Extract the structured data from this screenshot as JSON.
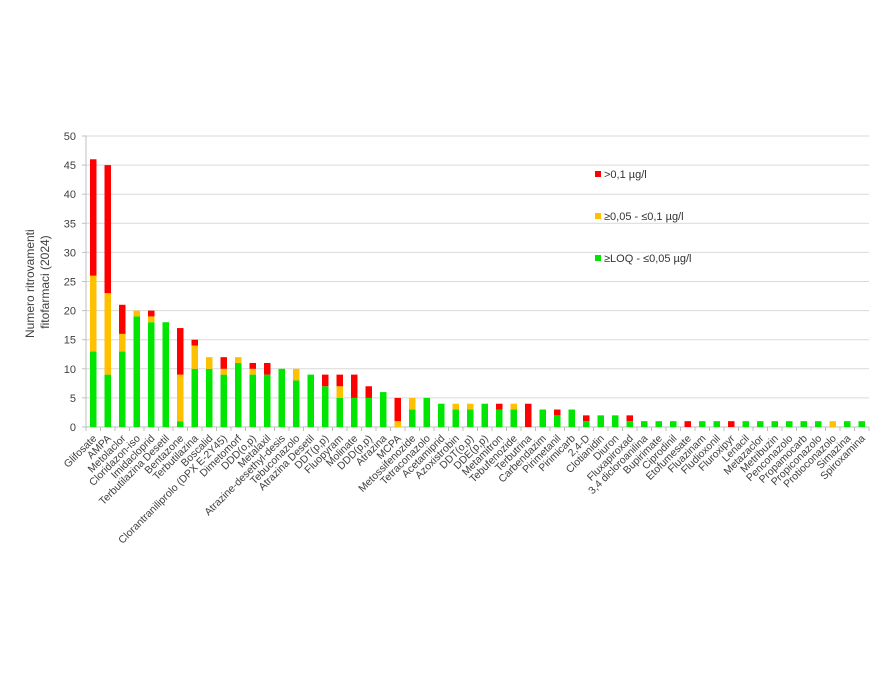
{
  "chart_data": {
    "type": "bar",
    "stacked": true,
    "title": "",
    "xlabel": "",
    "ylabel": "Numero ritrovamenti fitofarmaci (2024)",
    "ylabel_lines": [
      "Numero ritrovamenti",
      "fitofarmaci (2024)"
    ],
    "ylim": [
      0,
      50
    ],
    "yticks": [
      0,
      5,
      10,
      15,
      20,
      25,
      30,
      35,
      40,
      45,
      50
    ],
    "grid": true,
    "legend_position": "upper right (inside plot)",
    "categories": [
      "Glifosate",
      "AMPA",
      "Metolaclor",
      "Cloridazon-iso",
      "Imidacloprid",
      "Terbutilazina Desetil",
      "Bentazone",
      "Terbutilazina",
      "Boscalid",
      "Clorantraniliprolo (DPX E-2Y45)",
      "Dimetomorf",
      "DDD(o,p)",
      "Metalaxil",
      "Atrazine-desethyl-desis",
      "Tebuconazolo",
      "Atrazina Desetil",
      "DDT(p,p)",
      "Fluopyram",
      "Molinate",
      "DDD(p,p)",
      "Atrazina",
      "MCPA",
      "Metossifenozide",
      "Tetraconazolo",
      "Acetamiprid",
      "Azoxistrobin",
      "DDT(o,p)",
      "DDE(p,p)",
      "Metamitron",
      "Tebufenozide",
      "Terbutrina",
      "Carbendazim",
      "Pirimetanil",
      "Pirimicarb",
      "2,4-D",
      "Clotianidin",
      "Diuron",
      "Fluxapiroxad",
      "3,4 dicloroanilina",
      "Bupirimate",
      "Ciprodinil",
      "Etofumesate",
      "Fluazinam",
      "Fludioxonil",
      "Fluroxipyr",
      "Lenacil",
      "Metazaclor",
      "Metribuzin",
      "Penconazolo",
      "Propamocarb",
      "Propiconazolo",
      "Protioconazolo",
      "Simazina",
      "Spiroxamina"
    ],
    "series": [
      {
        "name": "≥LOQ - ≤0,05 µg/l",
        "color": "#00e600",
        "values": [
          13,
          9,
          13,
          19,
          18,
          18,
          1,
          10,
          10,
          9,
          11,
          9,
          9,
          10,
          8,
          9,
          7,
          5,
          5,
          5,
          6,
          0,
          3,
          5,
          4,
          3,
          3,
          4,
          3,
          3,
          0,
          3,
          2,
          3,
          1,
          2,
          2,
          1,
          1,
          1,
          1,
          0,
          1,
          1,
          0,
          1,
          1,
          1,
          1,
          1,
          1,
          0,
          1,
          1
        ]
      },
      {
        "name": "≥0,05 - ≤0,1 µg/l",
        "color": "#ffc000",
        "values": [
          13,
          14,
          3,
          1,
          1,
          0,
          8,
          4,
          2,
          1,
          1,
          1,
          0,
          0,
          2,
          0,
          0,
          2,
          0,
          0,
          0,
          1,
          2,
          0,
          0,
          1,
          1,
          0,
          0,
          1,
          0,
          0,
          0,
          0,
          0,
          0,
          0,
          0,
          0,
          0,
          0,
          0,
          0,
          0,
          0,
          0,
          0,
          0,
          0,
          0,
          0,
          1,
          0,
          0
        ]
      },
      {
        "name": ">0,1 µg/l",
        "color": "#ff0000",
        "values": [
          20,
          22,
          5,
          0,
          1,
          0,
          8,
          1,
          0,
          2,
          0,
          1,
          2,
          0,
          0,
          0,
          2,
          2,
          4,
          2,
          0,
          4,
          0,
          0,
          0,
          0,
          0,
          0,
          1,
          0,
          4,
          0,
          1,
          0,
          1,
          0,
          0,
          1,
          0,
          0,
          0,
          1,
          0,
          0,
          1,
          0,
          0,
          0,
          0,
          0,
          0,
          0,
          0,
          0
        ]
      }
    ],
    "legend": [
      {
        "label": ">0,1 µg/l",
        "color": "#ff0000"
      },
      {
        "label": "≥0,05 - ≤0,1 µg/l",
        "color": "#ffc000"
      },
      {
        "label": "≥LOQ - ≤0,05 µg/l",
        "color": "#00e600"
      }
    ]
  }
}
